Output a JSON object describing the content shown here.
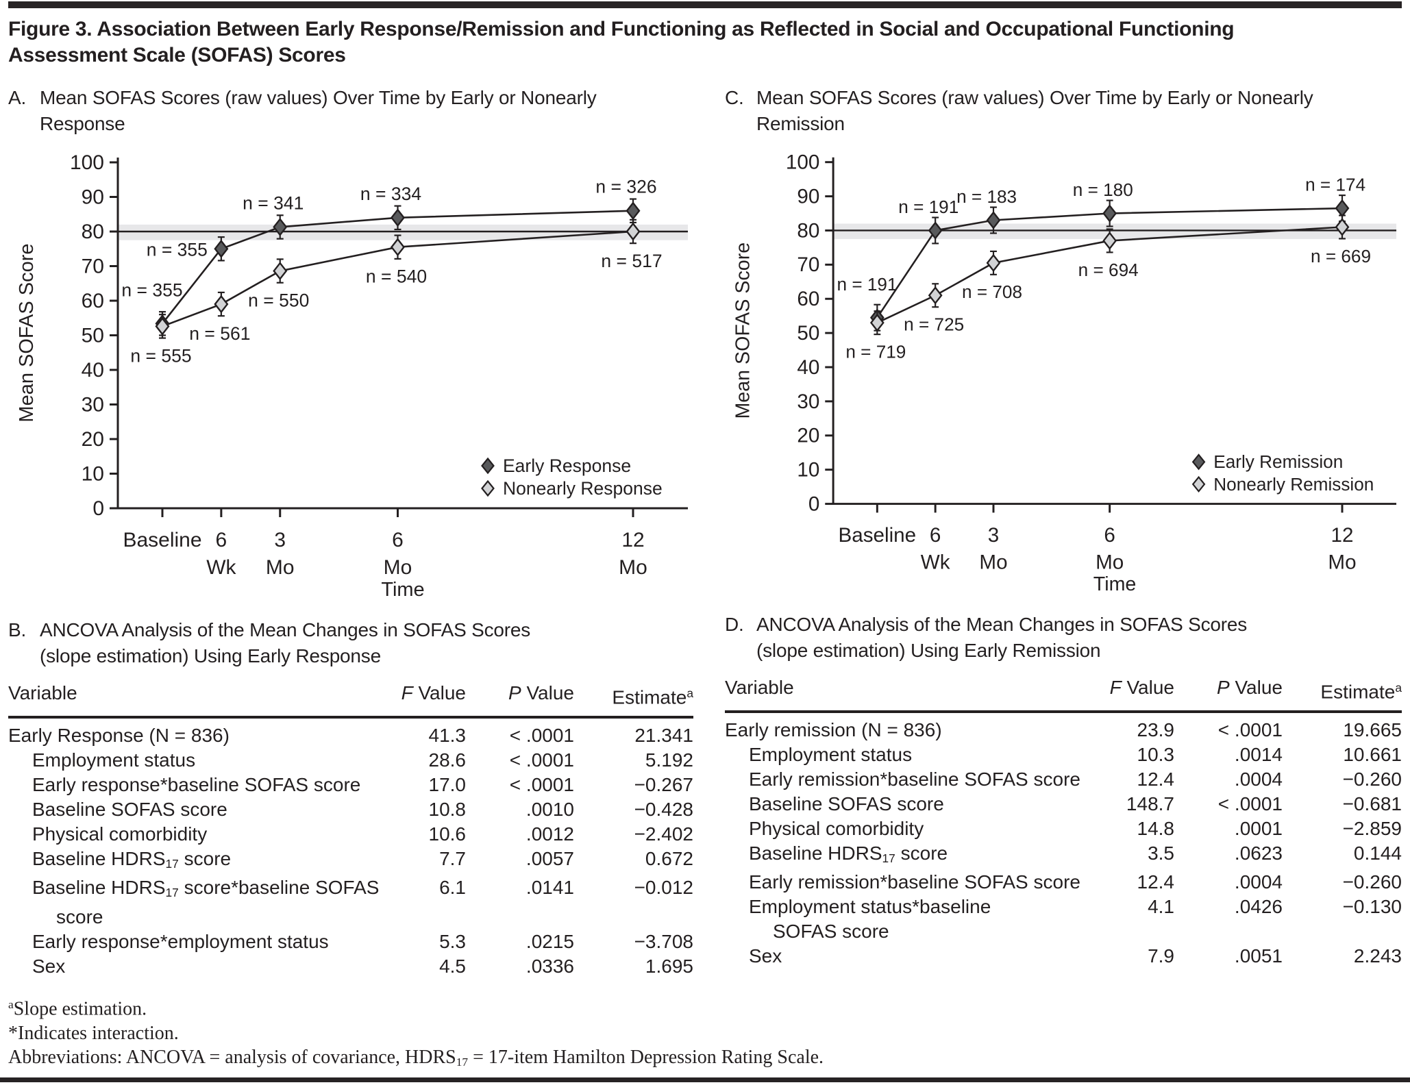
{
  "colors": {
    "text": "#231f20",
    "rule": "#272324",
    "axis": "#231f20",
    "reference_band": "#e7e7e9",
    "early_marker_fill": "#595a5c",
    "nonearly_marker_fill": "#d2d3d5",
    "marker_stroke": "#231f20"
  },
  "figure": {
    "title_lines": [
      "Figure 3. Association Between Early Response/Remission and Functioning as Reflected in Social and Occupational Functioning",
      "Assessment Scale (SOFAS) Scores"
    ]
  },
  "panels": {
    "A": {
      "marker": "A.",
      "lines": [
        "Mean SOFAS Scores (raw values) Over Time by Early or Nonearly",
        "Response"
      ]
    },
    "B": {
      "marker": "B.",
      "lines": [
        "ANCOVA Analysis of the Mean Changes in SOFAS Scores",
        "(slope estimation) Using Early Response"
      ]
    },
    "C": {
      "marker": "C.",
      "lines": [
        "Mean SOFAS Scores (raw values) Over Time by Early or Nonearly",
        "Remission"
      ]
    },
    "D": {
      "marker": "D.",
      "lines": [
        "ANCOVA Analysis of the Mean Changes in SOFAS Scores",
        "(slope estimation) Using Early Remission"
      ]
    }
  },
  "chart_data": [
    {
      "id": "A",
      "type": "line",
      "title": "Mean SOFAS Scores (raw values) Over Time by Early or Nonearly Response",
      "xlabel": "Time",
      "ylabel": "Mean SOFAS Score",
      "ylim": [
        0,
        100
      ],
      "y_ticks": [
        0,
        10,
        20,
        30,
        40,
        50,
        60,
        70,
        80,
        90,
        100
      ],
      "x_ticks": [
        {
          "line1": "Baseline",
          "line2": "",
          "month": 0
        },
        {
          "line1": "6",
          "line2": "Wk",
          "month": 1.5
        },
        {
          "line1": "3",
          "line2": "Mo",
          "month": 3
        },
        {
          "line1": "6",
          "line2": "Mo",
          "month": 6
        },
        {
          "line1": "12",
          "line2": "Mo",
          "month": 12
        }
      ],
      "reference_line": 80,
      "reference_band": [
        77.5,
        82
      ],
      "grid": false,
      "legend_position": "inside-right-lower",
      "series": [
        {
          "name": "Early Response",
          "marker": "diamond",
          "fill": "#595a5c",
          "values": [
            53.4,
            75,
            81.3,
            84,
            86
          ],
          "n_labels": [
            "n = 355",
            "n = 355",
            "n = 341",
            "n = 334",
            "n = 326"
          ],
          "n_pos": [
            "left-up",
            "left",
            "above",
            "above",
            "above"
          ],
          "error": 3.4
        },
        {
          "name": "Nonearly Response",
          "marker": "diamond",
          "fill": "#d2d3d5",
          "values": [
            52.6,
            59,
            68.6,
            75.5,
            80
          ],
          "n_labels": [
            "n = 555",
            "n = 561",
            "n = 550",
            "n = 540",
            "n = 517"
          ],
          "n_pos": [
            "below",
            "below",
            "below",
            "below",
            "below"
          ],
          "error": 3.4
        }
      ]
    },
    {
      "id": "C",
      "type": "line",
      "title": "Mean SOFAS Scores (raw values) Over Time by Early or Nonearly Remission",
      "xlabel": "Time",
      "ylabel": "Mean SOFAS Score",
      "ylim": [
        0,
        100
      ],
      "y_ticks": [
        0,
        10,
        20,
        30,
        40,
        50,
        60,
        70,
        80,
        90,
        100
      ],
      "x_ticks": [
        {
          "line1": "Baseline",
          "line2": "",
          "month": 0
        },
        {
          "line1": "6",
          "line2": "Wk",
          "month": 1.5
        },
        {
          "line1": "3",
          "line2": "Mo",
          "month": 3
        },
        {
          "line1": "6",
          "line2": "Mo",
          "month": 6
        },
        {
          "line1": "12",
          "line2": "Mo",
          "month": 12
        }
      ],
      "reference_line": 80,
      "reference_band": [
        77.5,
        82
      ],
      "grid": false,
      "legend_position": "inside-right-lower",
      "series": [
        {
          "name": "Early Remission",
          "marker": "diamond",
          "fill": "#595a5c",
          "values": [
            54.5,
            80,
            83,
            85,
            86.5
          ],
          "n_labels": [
            "n = 191",
            "n = 191",
            "n = 183",
            "n = 180",
            "n = 174"
          ],
          "n_pos": [
            "left-up",
            "above",
            "above",
            "above",
            "above"
          ],
          "error": 3.8
        },
        {
          "name": "Nonearly Remission",
          "marker": "diamond",
          "fill": "#d2d3d5",
          "values": [
            53,
            61,
            70.5,
            77,
            81
          ],
          "n_labels": [
            "n = 719",
            "n = 725",
            "n = 708",
            "n = 694",
            "n = 669"
          ],
          "n_pos": [
            "below",
            "below",
            "below",
            "below",
            "below"
          ],
          "error": 3.4
        }
      ]
    }
  ],
  "tables": [
    {
      "id": "B",
      "headers": [
        [
          {
            "t": "Variable"
          }
        ],
        [
          {
            "t": "F",
            "i": true
          },
          {
            "t": " Value"
          }
        ],
        [
          {
            "t": "P",
            "i": true
          },
          {
            "t": " Value"
          }
        ],
        [
          {
            "t": "Estimate"
          },
          {
            "t": "a",
            "sup": true
          }
        ]
      ],
      "rows": [
        {
          "indent": false,
          "label": [
            {
              "t": "Early Response (N = 836)"
            }
          ],
          "f": "41.3",
          "p": "< .0001",
          "est": "21.341"
        },
        {
          "indent": true,
          "label": [
            {
              "t": "Employment status"
            }
          ],
          "f": "28.6",
          "p": "< .0001",
          "est": "5.192"
        },
        {
          "indent": true,
          "label": [
            {
              "t": "Early response*baseline SOFAS score"
            }
          ],
          "f": "17.0",
          "p": "< .0001",
          "est": "−0.267"
        },
        {
          "indent": true,
          "label": [
            {
              "t": "Baseline SOFAS score"
            }
          ],
          "f": "10.8",
          "p": ".0010",
          "est": "−0.428"
        },
        {
          "indent": true,
          "label": [
            {
              "t": "Physical comorbidity"
            }
          ],
          "f": "10.6",
          "p": ".0012",
          "est": "−2.402"
        },
        {
          "indent": true,
          "label": [
            {
              "t": "Baseline HDRS"
            },
            {
              "t": "17",
              "sub": true
            },
            {
              "t": " score"
            }
          ],
          "f": "7.7",
          "p": ".0057",
          "est": "0.672"
        },
        {
          "indent": true,
          "label": [
            {
              "t": "Baseline HDRS"
            },
            {
              "t": "17",
              "sub": true
            },
            {
              "t": " score*baseline SOFAS"
            },
            {
              "br": true
            },
            {
              "t": "score"
            }
          ],
          "f": "6.1",
          "p": ".0141",
          "est": "−0.012"
        },
        {
          "indent": true,
          "label": [
            {
              "t": "Early response*employment status"
            }
          ],
          "f": "5.3",
          "p": ".0215",
          "est": "−3.708"
        },
        {
          "indent": true,
          "label": [
            {
              "t": "Sex"
            }
          ],
          "f": "4.5",
          "p": ".0336",
          "est": "1.695"
        }
      ]
    },
    {
      "id": "D",
      "headers": [
        [
          {
            "t": "Variable"
          }
        ],
        [
          {
            "t": "F",
            "i": true
          },
          {
            "t": " Value"
          }
        ],
        [
          {
            "t": "P",
            "i": true
          },
          {
            "t": " Value"
          }
        ],
        [
          {
            "t": "Estimate"
          },
          {
            "t": "a",
            "sup": true
          }
        ]
      ],
      "rows": [
        {
          "indent": false,
          "label": [
            {
              "t": "Early remission (N = 836)"
            }
          ],
          "f": "23.9",
          "p": "< .0001",
          "est": "19.665"
        },
        {
          "indent": true,
          "label": [
            {
              "t": "Employment status"
            }
          ],
          "f": "10.3",
          "p": ".0014",
          "est": "10.661"
        },
        {
          "indent": true,
          "label": [
            {
              "t": "Early remission*baseline SOFAS score"
            }
          ],
          "f": "12.4",
          "p": ".0004",
          "est": "−0.260"
        },
        {
          "indent": true,
          "label": [
            {
              "t": "Baseline SOFAS score"
            }
          ],
          "f": "148.7",
          "p": "< .0001",
          "est": "−0.681"
        },
        {
          "indent": true,
          "label": [
            {
              "t": "Physical comorbidity"
            }
          ],
          "f": "14.8",
          "p": ".0001",
          "est": "−2.859"
        },
        {
          "indent": true,
          "label": [
            {
              "t": "Baseline HDRS"
            },
            {
              "t": "17",
              "sub": true
            },
            {
              "t": " score"
            }
          ],
          "f": "3.5",
          "p": ".0623",
          "est": "0.144"
        },
        {
          "indent": true,
          "label": [
            {
              "t": "Early remission*baseline SOFAS score"
            }
          ],
          "f": "12.4",
          "p": ".0004",
          "est": "−0.260"
        },
        {
          "indent": true,
          "label": [
            {
              "t": "Employment status*baseline"
            },
            {
              "br": true
            },
            {
              "t": "SOFAS score"
            }
          ],
          "f": "4.1",
          "p": ".0426",
          "est": "−0.130"
        },
        {
          "indent": true,
          "label": [
            {
              "t": "Sex"
            }
          ],
          "f": "7.9",
          "p": ".0051",
          "est": "2.243"
        }
      ]
    }
  ],
  "footnotes": [
    [
      {
        "t": "a",
        "sup": true
      },
      {
        "t": "Slope estimation."
      }
    ],
    [
      {
        "t": "*Indicates interaction."
      }
    ],
    [
      {
        "t": "Abbreviations: ANCOVA = analysis of covariance, HDRS"
      },
      {
        "t": "17",
        "sub": true
      },
      {
        "t": " = 17-item Hamilton Depression Rating Scale."
      }
    ]
  ]
}
